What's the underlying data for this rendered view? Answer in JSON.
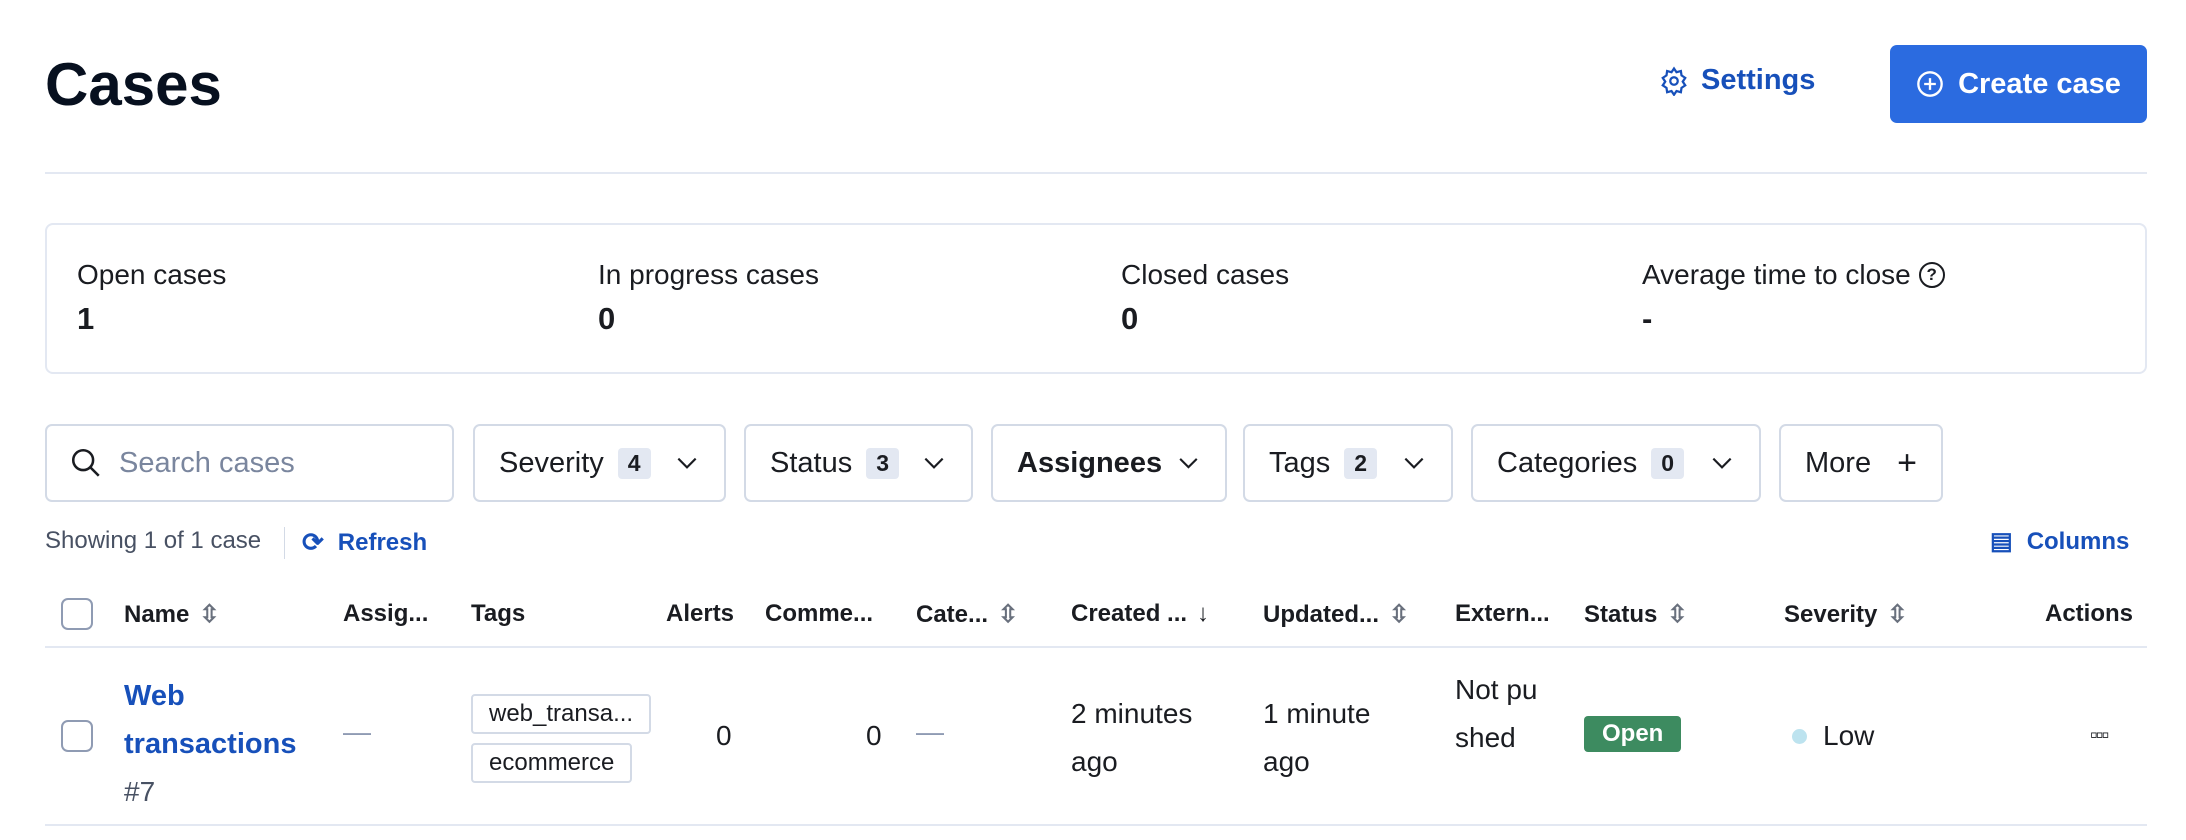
{
  "header": {
    "title": "Cases",
    "settings_label": "Settings",
    "create_label": "Create case"
  },
  "stats": [
    {
      "label": "Open cases",
      "value": "1"
    },
    {
      "label": "In progress cases",
      "value": "0"
    },
    {
      "label": "Closed cases",
      "value": "0"
    },
    {
      "label": "Average time to close",
      "value": "-"
    }
  ],
  "filters": {
    "search_placeholder": "Search cases",
    "severity": {
      "label": "Severity",
      "count": "4"
    },
    "status": {
      "label": "Status",
      "count": "3"
    },
    "assignees": {
      "label": "Assignees"
    },
    "tags": {
      "label": "Tags",
      "count": "2"
    },
    "categories": {
      "label": "Categories",
      "count": "0"
    },
    "more": {
      "label": "More"
    }
  },
  "meta": {
    "showing": "Showing 1 of 1 case",
    "refresh": "Refresh",
    "columns": "Columns"
  },
  "table": {
    "headers": {
      "name": "Name",
      "assignees": "Assig...",
      "tags": "Tags",
      "alerts": "Alerts",
      "comments": "Comme...",
      "category": "Cate...",
      "created": "Created ...",
      "updated": "Updated...",
      "external": "Extern...",
      "status": "Status",
      "severity": "Severity",
      "actions": "Actions"
    },
    "rows": [
      {
        "name": "Web transactions",
        "number": "#7",
        "assignees": "—",
        "tags": [
          "web_transa...",
          "ecommerce"
        ],
        "alerts": "0",
        "comments": "0",
        "category": "—",
        "created": "2 minutes ago",
        "updated": "1 minute ago",
        "external": "Not pushed",
        "status": "Open",
        "status_color": "#3d8b60",
        "severity": "Low",
        "severity_color": "#bde3ef"
      }
    ]
  },
  "colors": {
    "accent": "#2b6be0",
    "link": "#1750ba"
  }
}
